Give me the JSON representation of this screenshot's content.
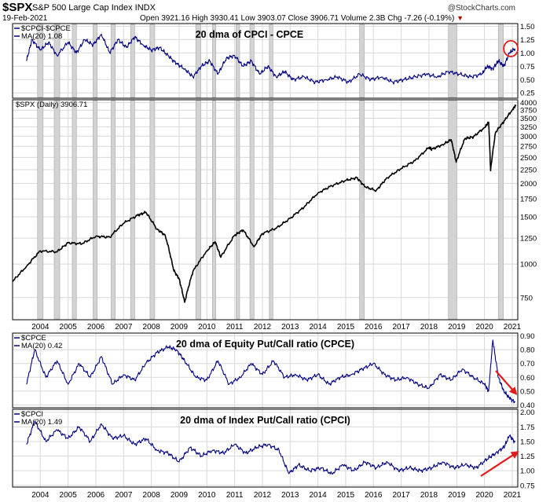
{
  "header": {
    "symbol": "$SPX",
    "name": "S&P 500 Large Cap Index INDX",
    "date": "19-Feb-2021",
    "quote": "Open 3921.16  High 3930.41  Low 3903.07  Close 3906.71  Volume 2.3B  Chg -7.26 (-0.19%)",
    "brand": "@StockCharts.com",
    "down_marker": "▼"
  },
  "colors": {
    "navy": "#000080",
    "shade": "#d3d3d3",
    "grid": "#d8d8d8",
    "red": "#e31a1a"
  },
  "chart_data": [
    {
      "type": "line",
      "title": "20 dma of CPCI - CPCE",
      "legend": [
        "$CPCI-$CPCE",
        "MA(20) 1.08"
      ],
      "ylim": [
        0.15,
        1.55
      ],
      "yticks": [
        "1.50",
        "1.25",
        "1.00",
        "0.75",
        "0.50",
        "0.25"
      ],
      "ytick_values": [
        1.5,
        1.25,
        1.0,
        0.75,
        0.5,
        0.25
      ],
      "series": [
        {
          "name": "MA(20)",
          "x": [
            2003.5,
            2003.7,
            2004.0,
            2004.3,
            2004.6,
            2005.0,
            2005.3,
            2005.6,
            2005.9,
            2006.2,
            2006.5,
            2006.8,
            2007.1,
            2007.4,
            2007.7,
            2008.0,
            2008.3,
            2008.6,
            2008.9,
            2009.2,
            2009.5,
            2009.8,
            2010.1,
            2010.4,
            2010.7,
            2011.0,
            2011.3,
            2011.6,
            2011.9,
            2012.2,
            2012.5,
            2012.8,
            2013.1,
            2013.5,
            2013.9,
            2014.3,
            2014.7,
            2015.1,
            2015.5,
            2015.9,
            2016.3,
            2016.7,
            2017.1,
            2017.5,
            2017.9,
            2018.3,
            2018.7,
            2019.1,
            2019.5,
            2019.9,
            2020.1,
            2020.3,
            2020.5,
            2020.7,
            2020.9,
            2021.1
          ],
          "values": [
            0.85,
            1.25,
            1.05,
            1.2,
            0.95,
            1.2,
            1.0,
            1.25,
            1.15,
            1.35,
            1.0,
            1.25,
            1.1,
            1.3,
            1.15,
            1.05,
            1.1,
            0.95,
            0.8,
            0.7,
            0.55,
            0.75,
            0.85,
            0.6,
            0.9,
            0.95,
            0.75,
            0.85,
            0.6,
            0.75,
            0.55,
            0.65,
            0.5,
            0.55,
            0.45,
            0.5,
            0.55,
            0.45,
            0.6,
            0.5,
            0.55,
            0.45,
            0.5,
            0.55,
            0.6,
            0.55,
            0.65,
            0.6,
            0.55,
            0.6,
            0.75,
            0.7,
            0.85,
            0.75,
            1.0,
            1.08
          ]
        }
      ]
    },
    {
      "type": "line",
      "title": "",
      "legend": [
        "$SPX (Daily) 3906.71"
      ],
      "scale": "log",
      "ylim": [
        620,
        4100
      ],
      "yticks": [
        "4000",
        "3750",
        "3500",
        "3250",
        "3000",
        "2750",
        "2500",
        "2250",
        "2000",
        "1750",
        "1500",
        "1250",
        "1000",
        "750"
      ],
      "ytick_values": [
        4000,
        3750,
        3500,
        3250,
        3000,
        2750,
        2500,
        2250,
        2000,
        1750,
        1500,
        1250,
        1000,
        750
      ],
      "series": [
        {
          "name": "$SPX",
          "x": [
            2003.0,
            2003.5,
            2004.0,
            2004.6,
            2005.0,
            2005.5,
            2006.0,
            2006.5,
            2007.0,
            2007.5,
            2007.8,
            2008.2,
            2008.5,
            2008.8,
            2009.0,
            2009.2,
            2009.5,
            2010.0,
            2010.3,
            2010.5,
            2011.0,
            2011.3,
            2011.7,
            2012.0,
            2012.5,
            2013.0,
            2013.5,
            2014.0,
            2014.5,
            2015.0,
            2015.4,
            2015.7,
            2016.1,
            2016.5,
            2017.0,
            2017.5,
            2018.0,
            2018.1,
            2018.5,
            2018.8,
            2018.98,
            2019.3,
            2019.6,
            2020.0,
            2020.15,
            2020.22,
            2020.4,
            2020.7,
            2021.0,
            2021.13
          ],
          "values": [
            860,
            980,
            1120,
            1110,
            1200,
            1190,
            1270,
            1260,
            1420,
            1520,
            1560,
            1350,
            1280,
            950,
            880,
            720,
            940,
            1120,
            1210,
            1060,
            1280,
            1340,
            1160,
            1300,
            1360,
            1480,
            1630,
            1840,
            1960,
            2050,
            2100,
            1940,
            1880,
            2100,
            2270,
            2430,
            2720,
            2680,
            2790,
            2910,
            2400,
            2940,
            2980,
            3230,
            3380,
            2230,
            3100,
            3400,
            3760,
            3907
          ]
        }
      ]
    },
    {
      "type": "line",
      "title": "20 dma of Equity Put/Call ratio (CPCE)",
      "legend": [
        "$CPCE",
        "MA(20) 0.42"
      ],
      "ylim": [
        0.38,
        0.92
      ],
      "yticks": [
        "0.90",
        "0.80",
        "0.70",
        "0.60",
        "0.50",
        "0.40"
      ],
      "ytick_values": [
        0.9,
        0.8,
        0.7,
        0.6,
        0.5,
        0.4
      ],
      "series": [
        {
          "name": "MA(20)",
          "x": [
            2003.5,
            2003.8,
            2004.2,
            2004.6,
            2005.0,
            2005.4,
            2005.8,
            2006.2,
            2006.6,
            2007.0,
            2007.4,
            2007.8,
            2008.2,
            2008.6,
            2008.9,
            2009.2,
            2009.6,
            2010.0,
            2010.4,
            2010.8,
            2011.2,
            2011.6,
            2012.0,
            2012.4,
            2012.8,
            2013.2,
            2013.6,
            2014.0,
            2014.4,
            2014.8,
            2015.2,
            2015.6,
            2016.0,
            2016.4,
            2016.8,
            2017.2,
            2017.6,
            2018.0,
            2018.4,
            2018.8,
            2019.2,
            2019.6,
            2020.0,
            2020.15,
            2020.3,
            2020.5,
            2020.7,
            2020.9,
            2021.1
          ],
          "values": [
            0.55,
            0.8,
            0.6,
            0.72,
            0.55,
            0.7,
            0.6,
            0.75,
            0.55,
            0.62,
            0.58,
            0.7,
            0.78,
            0.82,
            0.8,
            0.72,
            0.6,
            0.58,
            0.72,
            0.55,
            0.6,
            0.7,
            0.62,
            0.72,
            0.6,
            0.62,
            0.58,
            0.62,
            0.55,
            0.6,
            0.62,
            0.66,
            0.7,
            0.62,
            0.58,
            0.6,
            0.55,
            0.52,
            0.62,
            0.58,
            0.66,
            0.6,
            0.55,
            0.5,
            0.87,
            0.6,
            0.5,
            0.45,
            0.42
          ]
        }
      ]
    },
    {
      "type": "line",
      "title": "20 dma of Index Put/Call ratio (CPCI)",
      "legend": [
        "$CPCI",
        "MA(20) 1.49"
      ],
      "ylim": [
        0.72,
        2.05
      ],
      "yticks": [
        "2.00",
        "1.75",
        "1.50",
        "1.25",
        "1.00",
        "0.75"
      ],
      "ytick_values": [
        2.0,
        1.75,
        1.5,
        1.25,
        1.0,
        0.75
      ],
      "xticks": [
        "2004",
        "2005",
        "2006",
        "2007",
        "2008",
        "2009",
        "2010",
        "2011",
        "2012",
        "2013",
        "2014",
        "2015",
        "2016",
        "2017",
        "2018",
        "2019",
        "2020",
        "2021"
      ],
      "series": [
        {
          "name": "MA(20)",
          "x": [
            2003.5,
            2003.8,
            2004.2,
            2004.6,
            2005.0,
            2005.4,
            2005.8,
            2006.2,
            2006.6,
            2007.0,
            2007.4,
            2007.8,
            2008.2,
            2008.6,
            2009.0,
            2009.4,
            2009.8,
            2010.2,
            2010.6,
            2011.0,
            2011.4,
            2011.8,
            2012.2,
            2012.6,
            2012.95,
            2013.3,
            2013.7,
            2014.1,
            2014.5,
            2014.9,
            2015.3,
            2015.7,
            2016.1,
            2016.5,
            2016.9,
            2017.3,
            2017.7,
            2018.1,
            2018.5,
            2018.9,
            2019.3,
            2019.7,
            2020.1,
            2020.4,
            2020.7,
            2020.9,
            2021.1
          ],
          "values": [
            1.45,
            1.85,
            1.5,
            1.7,
            1.55,
            1.75,
            1.5,
            1.8,
            1.55,
            1.6,
            1.45,
            1.55,
            1.35,
            1.3,
            1.15,
            1.4,
            1.25,
            1.35,
            1.3,
            1.45,
            1.3,
            1.4,
            1.45,
            1.35,
            0.95,
            1.1,
            1.0,
            1.05,
            0.95,
            1.1,
            1.0,
            1.15,
            1.05,
            1.15,
            1.0,
            1.05,
            1.0,
            1.05,
            1.15,
            1.05,
            1.1,
            1.05,
            1.2,
            1.3,
            1.4,
            1.6,
            1.49
          ]
        }
      ]
    }
  ],
  "highlight_years": [
    [
      2003.9,
      2004.1
    ],
    [
      2004.5,
      2004.7
    ],
    [
      2005.15,
      2005.3
    ],
    [
      2005.9,
      2006.05
    ],
    [
      2006.55,
      2006.7
    ],
    [
      2007.25,
      2007.4
    ],
    [
      2007.95,
      2008.12
    ],
    [
      2009.6,
      2009.78
    ],
    [
      2010.2,
      2010.32
    ],
    [
      2011.05,
      2011.18
    ],
    [
      2011.55,
      2011.7
    ],
    [
      2012.25,
      2012.38
    ],
    [
      2015.5,
      2015.67
    ],
    [
      2018.7,
      2019.0
    ],
    [
      2020.5,
      2020.68
    ]
  ]
}
